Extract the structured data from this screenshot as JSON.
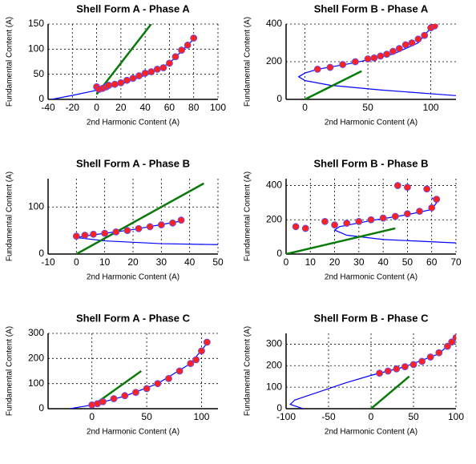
{
  "chart_data": [
    {
      "type": "scatter",
      "title": "Shell Form A - Phase A",
      "x_label": "2nd Harmonic Content (A)",
      "y_label": "Fundamental Content (A)",
      "xlim": [
        -40,
        100
      ],
      "ylim": [
        0,
        150
      ],
      "xticks": [
        -40,
        -20,
        0,
        20,
        40,
        60,
        80,
        100
      ],
      "yticks": [
        0,
        50,
        100,
        150
      ],
      "grid": true,
      "series": [
        {
          "style": "markers",
          "color": "#ff2020",
          "x": [
            0,
            2,
            5,
            8,
            10,
            15,
            20,
            25,
            30,
            35,
            40,
            45,
            50,
            55,
            60,
            65,
            70,
            75,
            80
          ],
          "values": [
            25,
            20,
            22,
            25,
            28,
            30,
            33,
            38,
            42,
            47,
            52,
            55,
            60,
            63,
            72,
            85,
            98,
            108,
            122
          ]
        },
        {
          "style": "line",
          "color": "#0000ff",
          "x": [
            -37,
            -20,
            0,
            20,
            40,
            60,
            80
          ],
          "values": [
            0,
            8,
            18,
            30,
            48,
            72,
            120
          ]
        },
        {
          "style": "line",
          "color": "#0a7a0a",
          "x": [
            0,
            45
          ],
          "values": [
            10,
            150
          ]
        }
      ]
    },
    {
      "type": "scatter",
      "title": "Shell Form B - Phase A",
      "x_label": "2nd Harmonic Content (A)",
      "y_label": "Fundamental Content (A)",
      "xlim": [
        -15,
        120
      ],
      "ylim": [
        0,
        400
      ],
      "xticks": [
        0,
        50,
        100
      ],
      "yticks": [
        0,
        200,
        400
      ],
      "grid": true,
      "series": [
        {
          "style": "markers",
          "color": "#ff2020",
          "x": [
            10,
            20,
            30,
            40,
            50,
            55,
            60,
            65,
            70,
            75,
            80,
            85,
            90,
            95,
            100,
            103
          ],
          "values": [
            160,
            170,
            185,
            200,
            215,
            220,
            230,
            240,
            255,
            270,
            290,
            300,
            320,
            340,
            380,
            390
          ]
        },
        {
          "style": "line",
          "color": "#0000ff",
          "x": [
            120,
            60,
            20,
            0,
            -5,
            0,
            10,
            40,
            70,
            90,
            100,
            105
          ],
          "values": [
            20,
            50,
            75,
            100,
            120,
            140,
            160,
            195,
            240,
            300,
            380,
            400
          ]
        },
        {
          "style": "line",
          "color": "#0a7a0a",
          "x": [
            0,
            45
          ],
          "values": [
            0,
            150
          ]
        }
      ]
    },
    {
      "type": "scatter",
      "title": "Shell Form A - Phase B",
      "x_label": "2nd Harmonic Content (A)",
      "y_label": "Fundamental Content (A)",
      "xlim": [
        -10,
        50
      ],
      "ylim": [
        0,
        160
      ],
      "xticks": [
        -10,
        0,
        10,
        20,
        30,
        40,
        50
      ],
      "yticks": [
        0,
        100
      ],
      "grid": true,
      "series": [
        {
          "style": "markers",
          "color": "#ff2020",
          "x": [
            0,
            3,
            6,
            10,
            14,
            18,
            22,
            26,
            30,
            34,
            37
          ],
          "values": [
            38,
            40,
            42,
            44,
            47,
            50,
            54,
            58,
            62,
            66,
            72
          ]
        },
        {
          "style": "line",
          "color": "#0000ff",
          "x": [
            50,
            30,
            10,
            0,
            5,
            20,
            37
          ],
          "values": [
            20,
            22,
            28,
            35,
            40,
            52,
            70
          ]
        },
        {
          "style": "line",
          "color": "#0a7a0a",
          "x": [
            0,
            45
          ],
          "values": [
            0,
            150
          ]
        }
      ]
    },
    {
      "type": "scatter",
      "title": "Shell Form B - Phase B",
      "x_label": "2nd Harmonic Content (A)",
      "y_label": "Fundamental Content (A)",
      "xlim": [
        0,
        70
      ],
      "ylim": [
        0,
        440
      ],
      "xticks": [
        0,
        10,
        20,
        30,
        40,
        50,
        60,
        70
      ],
      "yticks": [
        0,
        200,
        400
      ],
      "grid": true,
      "series": [
        {
          "style": "markers",
          "color": "#ff2020",
          "x": [
            4,
            8,
            16,
            20,
            25,
            30,
            35,
            40,
            45,
            50,
            55,
            60,
            62,
            58,
            50,
            46
          ],
          "values": [
            160,
            150,
            190,
            170,
            180,
            190,
            200,
            210,
            220,
            235,
            250,
            270,
            320,
            380,
            390,
            400
          ]
        },
        {
          "style": "line",
          "color": "#0000ff",
          "x": [
            70,
            40,
            25,
            20,
            22,
            35,
            50,
            60,
            62,
            60
          ],
          "values": [
            65,
            85,
            110,
            140,
            160,
            195,
            230,
            260,
            300,
            330
          ]
        },
        {
          "style": "line",
          "color": "#0a7a0a",
          "x": [
            0,
            45
          ],
          "values": [
            0,
            150
          ]
        }
      ]
    },
    {
      "type": "scatter",
      "title": "Shell Form A - Phase C",
      "x_label": "2nd Harmonic Content (A)",
      "y_label": "Fundamental Content (A)",
      "xlim": [
        -40,
        115
      ],
      "ylim": [
        0,
        300
      ],
      "xticks": [
        0,
        50,
        100
      ],
      "yticks": [
        0,
        100,
        200,
        300
      ],
      "grid": true,
      "series": [
        {
          "style": "markers",
          "color": "#ff2020",
          "x": [
            0,
            5,
            10,
            20,
            30,
            40,
            50,
            60,
            70,
            80,
            90,
            95,
            100,
            105
          ],
          "values": [
            15,
            20,
            28,
            40,
            52,
            65,
            80,
            100,
            120,
            150,
            180,
            195,
            230,
            265
          ]
        },
        {
          "style": "line",
          "color": "#0000ff",
          "x": [
            -20,
            0,
            30,
            60,
            90,
            105
          ],
          "values": [
            0,
            15,
            50,
            100,
            180,
            260
          ]
        },
        {
          "style": "line",
          "color": "#0a7a0a",
          "x": [
            0,
            45
          ],
          "values": [
            10,
            150
          ]
        }
      ]
    },
    {
      "type": "scatter",
      "title": "Shell Form B - Phase C",
      "x_label": "2nd Harmonic Content (A)",
      "y_label": "Fundamental Content (A)",
      "xlim": [
        -100,
        100
      ],
      "ylim": [
        0,
        350
      ],
      "xticks": [
        -100,
        -50,
        0,
        50,
        100
      ],
      "yticks": [
        0,
        100,
        200,
        300
      ],
      "grid": true,
      "series": [
        {
          "style": "markers",
          "color": "#ff2020",
          "x": [
            10,
            20,
            30,
            40,
            50,
            60,
            70,
            80,
            90,
            95,
            100
          ],
          "values": [
            165,
            175,
            185,
            195,
            205,
            220,
            240,
            260,
            290,
            310,
            330
          ]
        },
        {
          "style": "line",
          "color": "#0000ff",
          "x": [
            -80,
            -95,
            -90,
            -60,
            -30,
            0,
            40,
            80,
            100
          ],
          "values": [
            0,
            20,
            40,
            80,
            120,
            155,
            195,
            255,
            330
          ]
        },
        {
          "style": "line",
          "color": "#0a7a0a",
          "x": [
            0,
            45
          ],
          "values": [
            0,
            150
          ]
        }
      ]
    }
  ]
}
